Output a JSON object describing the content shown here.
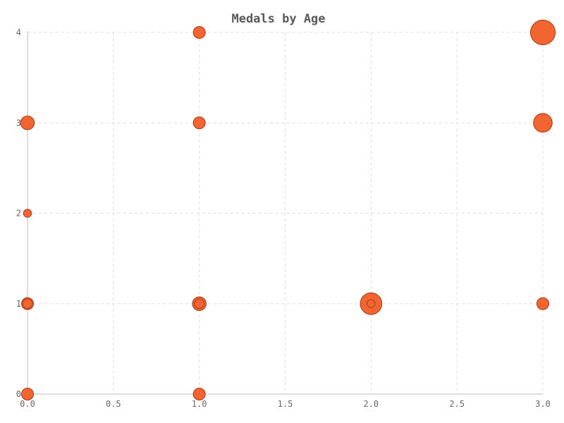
{
  "chart_data": {
    "type": "scatter",
    "title": "Medals by Age",
    "xlabel": "",
    "ylabel": "",
    "xlim": [
      0,
      3
    ],
    "ylim": [
      0,
      4
    ],
    "x_ticks": [
      "0.0",
      "0.5",
      "1.0",
      "1.5",
      "2.0",
      "2.5",
      "3.0"
    ],
    "y_ticks": [
      "0",
      "1",
      "2",
      "3",
      "4"
    ],
    "grid": true,
    "color": "#f26430",
    "points": [
      {
        "x": 0,
        "y": 0,
        "size": 2
      },
      {
        "x": 0,
        "y": 1,
        "size": 2
      },
      {
        "x": 0,
        "y": 1,
        "size": 1
      },
      {
        "x": 0,
        "y": 2,
        "size": 0.5
      },
      {
        "x": 0,
        "y": 3,
        "size": 3
      },
      {
        "x": 1,
        "y": 0,
        "size": 2
      },
      {
        "x": 1,
        "y": 1,
        "size": 3
      },
      {
        "x": 1,
        "y": 1,
        "size": 1
      },
      {
        "x": 1,
        "y": 3,
        "size": 2
      },
      {
        "x": 1,
        "y": 4,
        "size": 2
      },
      {
        "x": 2,
        "y": 1,
        "size": 10
      },
      {
        "x": 2,
        "y": 1,
        "size": 0.5
      },
      {
        "x": 3,
        "y": 1,
        "size": 2
      },
      {
        "x": 3,
        "y": 3,
        "size": 7
      },
      {
        "x": 3,
        "y": 4,
        "size": 14
      }
    ]
  }
}
